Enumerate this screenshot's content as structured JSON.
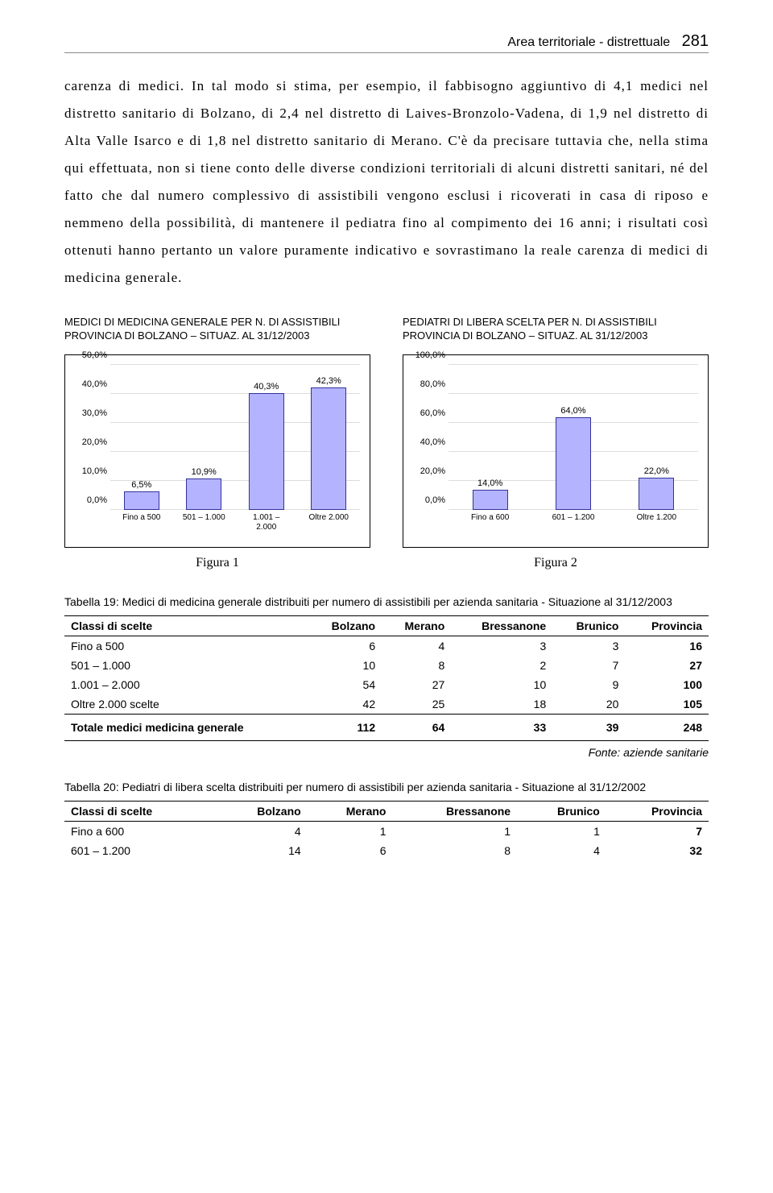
{
  "header": {
    "section": "Area territoriale - distrettuale",
    "page": "281"
  },
  "body_text": "carenza di medici. In tal modo si stima, per esempio, il fabbisogno aggiuntivo di 4,1 medici nel distretto sanitario di Bolzano, di 2,4 nel distretto di Laives-Bronzolo-Vadena, di 1,9 nel distretto di Alta Valle Isarco e di 1,8 nel distretto sanitario di Merano. C'è da precisare tuttavia che, nella stima qui effettuata, non si tiene conto delle diverse condizioni territoriali di alcuni distretti sanitari, né del fatto che dal numero complessivo di assistibili vengono esclusi i ricoverati in casa di riposo e nemmeno della possibilità, di mantenere il pediatra fino al compimento dei 16 anni; i risultati così ottenuti hanno pertanto un valore puramente indicativo e sovrastimano la reale carenza di medici di medicina generale.",
  "chart1": {
    "title": "MEDICI DI MEDICINA GENERALE PER N. DI ASSISTIBILI PROVINCIA DI BOLZANO – SITUAZ. AL 31/12/2003",
    "type": "bar",
    "ylim": [
      0,
      50
    ],
    "ytick_step": 10,
    "y_format_suffix": ",0%",
    "categories": [
      "Fino a 500",
      "501 – 1.000",
      "1.001 – 2.000",
      "Oltre 2.000"
    ],
    "values": [
      6.5,
      10.9,
      40.3,
      42.3
    ],
    "value_labels": [
      "6,5%",
      "10,9%",
      "40,3%",
      "42,3%"
    ],
    "bar_color": "#b3b3ff",
    "bar_border": "#333399",
    "grid_color": "#dcdcdc",
    "figura": "Figura 1"
  },
  "chart2": {
    "title": "PEDIATRI DI LIBERA SCELTA PER N. DI ASSISTIBILI PROVINCIA DI BOLZANO – SITUAZ. AL 31/12/2003",
    "type": "bar",
    "ylim": [
      0,
      100
    ],
    "ytick_step": 20,
    "y_format_suffix": ",0%",
    "categories": [
      "Fino a 600",
      "601 – 1.200",
      "Oltre 1.200"
    ],
    "values": [
      14.0,
      64.0,
      22.0
    ],
    "value_labels": [
      "14,0%",
      "64,0%",
      "22,0%"
    ],
    "bar_color": "#b3b3ff",
    "bar_border": "#333399",
    "grid_color": "#dcdcdc",
    "figura": "Figura 2"
  },
  "table19": {
    "title": "Tabella 19: Medici di medicina generale distribuiti per numero di assistibili per azienda sanitaria - Situazione al 31/12/2003",
    "columns": [
      "Classi di scelte",
      "Bolzano",
      "Merano",
      "Bressanone",
      "Brunico",
      "Provincia"
    ],
    "rows": [
      [
        "Fino a 500",
        "6",
        "4",
        "3",
        "3",
        "16"
      ],
      [
        "501 – 1.000",
        "10",
        "8",
        "2",
        "7",
        "27"
      ],
      [
        "1.001 – 2.000",
        "54",
        "27",
        "10",
        "9",
        "100"
      ],
      [
        "Oltre 2.000 scelte",
        "42",
        "25",
        "18",
        "20",
        "105"
      ]
    ],
    "total_row": [
      "Totale medici medicina generale",
      "112",
      "64",
      "33",
      "39",
      "248"
    ],
    "source": "Fonte: aziende sanitarie"
  },
  "table20": {
    "title": "Tabella 20: Pediatri di libera scelta distribuiti per numero di assistibili per azienda sanitaria - Situazione al 31/12/2002",
    "columns": [
      "Classi di scelte",
      "Bolzano",
      "Merano",
      "Bressanone",
      "Brunico",
      "Provincia"
    ],
    "rows": [
      [
        "Fino a 600",
        "4",
        "1",
        "1",
        "1",
        "7"
      ],
      [
        "601 – 1.200",
        "14",
        "6",
        "8",
        "4",
        "32"
      ]
    ]
  }
}
